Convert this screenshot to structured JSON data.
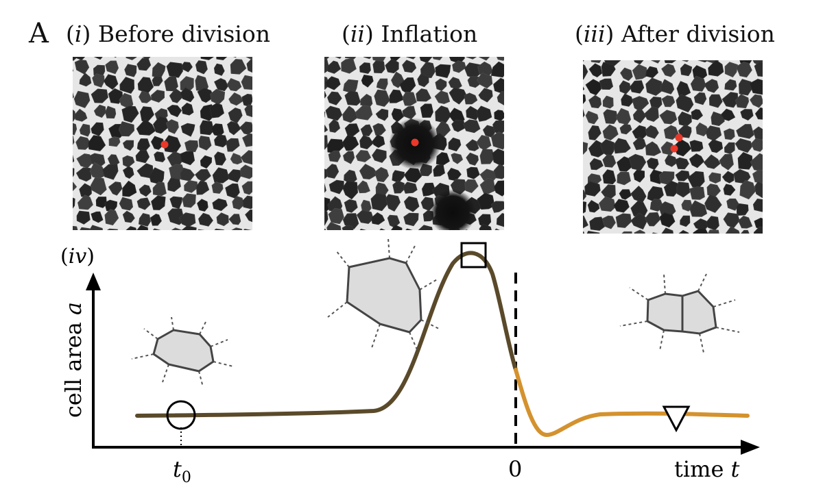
{
  "panel_letter": "A",
  "panels": [
    {
      "numeral": "i",
      "title": "Before division"
    },
    {
      "numeral": "ii",
      "title": "Inflation"
    },
    {
      "numeral": "iii",
      "title": "After division"
    }
  ],
  "plot_panel_numeral": "iv",
  "ylabel_text": "cell area",
  "ylabel_var": "a",
  "xlabel_text": "time",
  "xlabel_var": "t",
  "tick_t0_base": "t",
  "tick_t0_sub": "0",
  "tick_zero": "0",
  "markers": {
    "start": "circle-marker",
    "peak": "square-marker",
    "end": "triangle-marker"
  },
  "colors": {
    "before_division_curve": "#5a4a2a",
    "after_division_curve": "#d4922e",
    "cell_fill": "#dcdcdc",
    "cell_edge": "#444444",
    "nucleus_dot": "#e8392b",
    "microscopy_bg": "#2a2a2a",
    "membrane": "#e6e6e6"
  }
}
